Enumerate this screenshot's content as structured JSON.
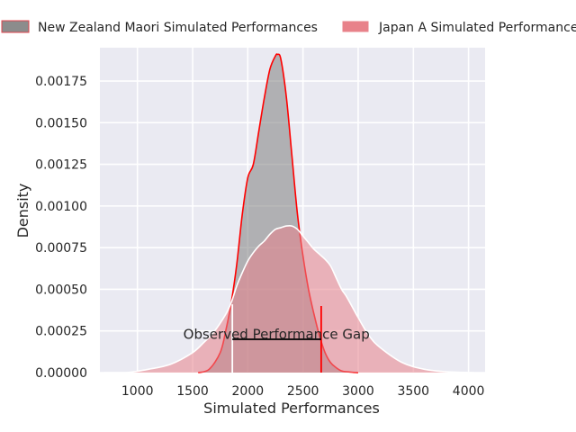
{
  "chart_data": {
    "type": "area",
    "title": "",
    "xlabel": "Simulated Performances",
    "ylabel": "Density",
    "xlim": [
      660,
      4150
    ],
    "ylim": [
      0,
      0.00195
    ],
    "xticks": [
      1000,
      1500,
      2000,
      2500,
      3000,
      3500,
      4000
    ],
    "xtick_labels": [
      "1000",
      "1500",
      "2000",
      "2500",
      "3000",
      "3500",
      "4000"
    ],
    "yticks": [
      0,
      0.00025,
      0.0005,
      0.00075,
      0.001,
      0.00125,
      0.0015,
      0.00175
    ],
    "ytick_labels": [
      "0.00000",
      "0.00025",
      "0.00050",
      "0.00075",
      "0.00100",
      "0.00125",
      "0.00150",
      "0.00175"
    ],
    "grid": true,
    "legend_position": "top (outside plot)",
    "series": [
      {
        "name": "New Zealand Maori Simulated Performances",
        "fill_color": "#7f7f7f",
        "line_color": "#ff0000",
        "x": [
          1550,
          1650,
          1750,
          1800,
          1850,
          1900,
          1950,
          2000,
          2050,
          2100,
          2150,
          2200,
          2250,
          2270,
          2300,
          2350,
          2400,
          2450,
          2500,
          2550,
          2600,
          2650,
          2700,
          2750,
          2800,
          2850,
          2900,
          2950,
          3000
        ],
        "y": [
          0.0,
          2e-05,
          0.00012,
          0.00025,
          0.00042,
          0.00065,
          0.00095,
          0.00117,
          0.00125,
          0.00145,
          0.00165,
          0.00182,
          0.0019,
          0.00191,
          0.00188,
          0.00165,
          0.0013,
          0.00095,
          0.0007,
          0.0005,
          0.00035,
          0.00022,
          0.00012,
          6e-05,
          3e-05,
          1e-05,
          5e-06,
          2e-06,
          0.0
        ]
      },
      {
        "name": "Japan A Simulated Performances",
        "fill_color": "#e8828a",
        "line_color": "#ffffff",
        "x": [
          700,
          900,
          1100,
          1300,
          1500,
          1600,
          1700,
          1800,
          1850,
          1900,
          1950,
          2000,
          2050,
          2100,
          2150,
          2200,
          2250,
          2300,
          2350,
          2400,
          2450,
          2500,
          2550,
          2600,
          2650,
          2700,
          2750,
          2800,
          2850,
          2900,
          3000,
          3100,
          3200,
          3400,
          3600,
          3800,
          4050
        ],
        "y": [
          0.0,
          0.0,
          2e-05,
          5e-05,
          0.00012,
          0.00018,
          0.00025,
          0.00035,
          0.00042,
          0.00052,
          0.0006,
          0.00067,
          0.00072,
          0.00076,
          0.00079,
          0.00083,
          0.00086,
          0.00087,
          0.00088,
          0.00088,
          0.00086,
          0.00082,
          0.00078,
          0.00074,
          0.00071,
          0.00068,
          0.00064,
          0.00057,
          0.0005,
          0.00045,
          0.00033,
          0.00022,
          0.00015,
          6e-05,
          2e-05,
          5e-06,
          0.0
        ]
      }
    ],
    "annotations": [
      {
        "type": "vline",
        "x": 1860,
        "y_top": 0.00041,
        "color": "#ffffff"
      },
      {
        "type": "vline",
        "x": 2665,
        "y_top": 0.0004,
        "color": "#ff0000"
      },
      {
        "type": "hline",
        "x1": 1860,
        "x2": 2665,
        "y": 0.0002,
        "color": "#000000"
      },
      {
        "type": "text",
        "text": "Observed Performance Gap",
        "x": 2260,
        "y": 0.00022
      }
    ]
  }
}
